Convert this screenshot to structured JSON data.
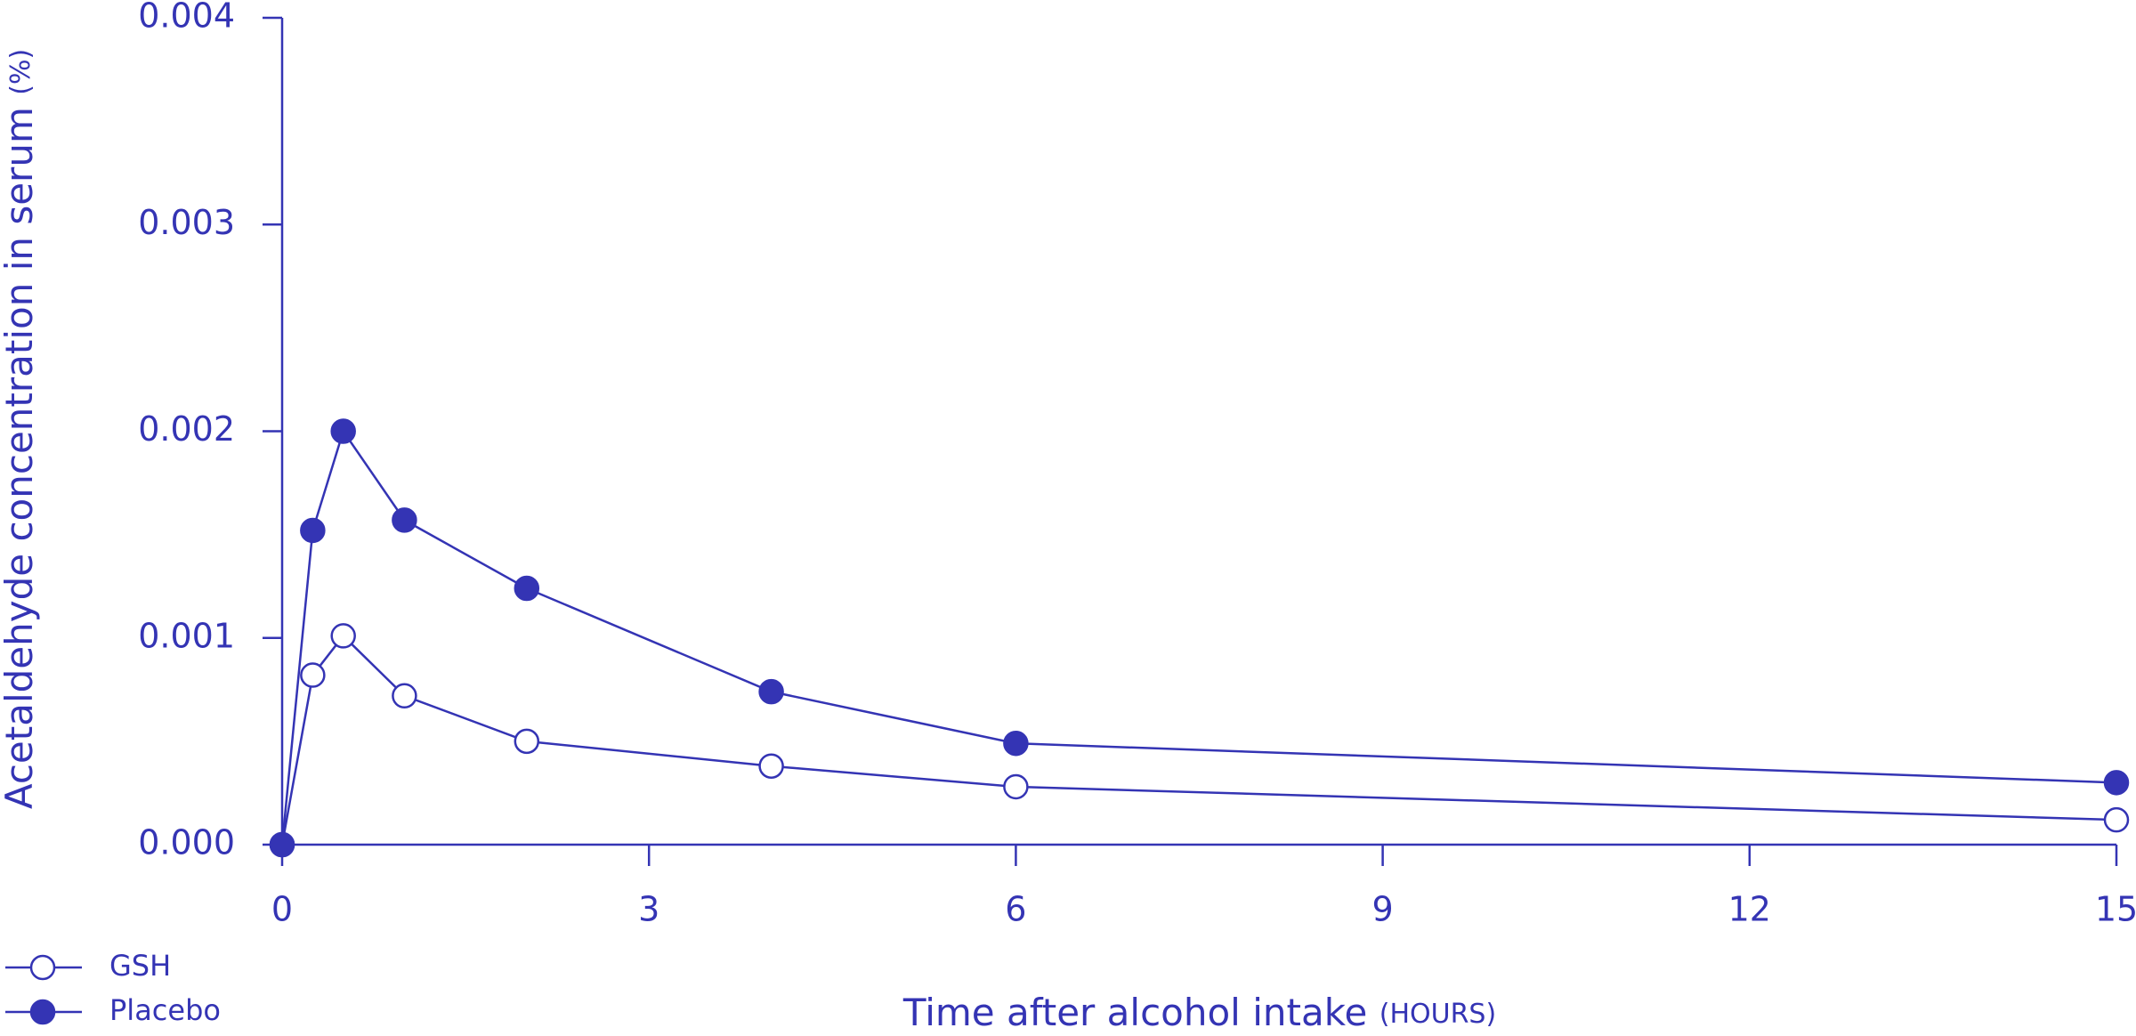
{
  "chart_data": {
    "type": "line",
    "y_label": "Acetaldehyde concentration in serum",
    "y_label_unit": "(%)",
    "x_label": "Time after alcohol intake",
    "x_label_unit": "(HOURS)",
    "x": [
      0,
      0.25,
      0.5,
      1,
      2,
      4,
      6,
      15
    ],
    "series": [
      {
        "name": "GSH",
        "color": "#3434b4",
        "filled": false,
        "values": [
          0,
          0.00082,
          0.00101,
          0.00072,
          0.0005,
          0.00038,
          0.00028,
          0.00012
        ]
      },
      {
        "name": "Placebo",
        "color": "#3434b4",
        "filled": true,
        "values": [
          0,
          0.00152,
          0.002,
          0.00157,
          0.00124,
          0.00074,
          0.00049,
          0.0003
        ]
      }
    ],
    "xlim": [
      0,
      15
    ],
    "xticks": [
      0,
      3,
      6,
      9,
      12,
      15
    ],
    "ylim": [
      0,
      0.004
    ],
    "yticks": [
      {
        "value": 0,
        "label": "0.000"
      },
      0.001,
      0.002,
      0.003,
      0.004
    ],
    "axis_color": "#3434b4",
    "grid": false
  }
}
